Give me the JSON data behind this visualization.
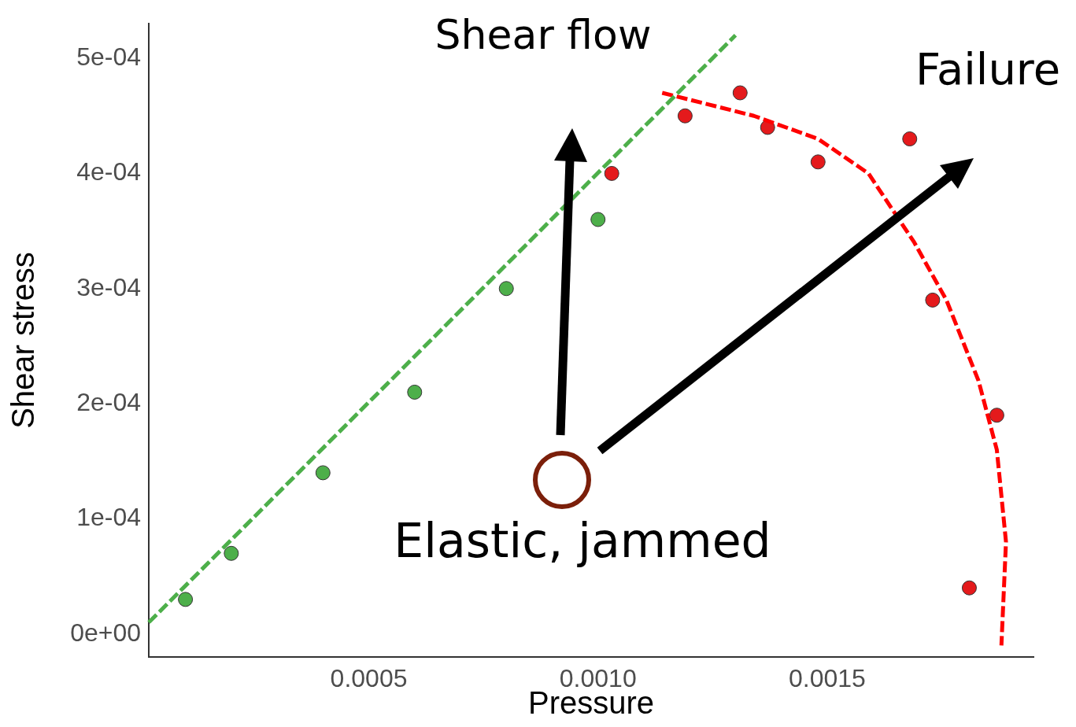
{
  "chart_data": {
    "type": "scatter",
    "xlabel": "Pressure",
    "ylabel": "Shear stress",
    "xlim": [
      2e-05,
      0.00195
    ],
    "ylim": [
      -2e-05,
      0.00053
    ],
    "xticks": [
      0.0005,
      {
        "value": 0.001,
        "label": "0.0010"
      },
      0.0015
    ],
    "yticks": [
      {
        "value": 0,
        "label": "0e+00"
      },
      {
        "value": 0.0001,
        "label": "1e-04"
      },
      {
        "value": 0.0002,
        "label": "2e-04"
      },
      {
        "value": 0.0003,
        "label": "3e-04"
      },
      {
        "value": 0.0004,
        "label": "4e-04"
      },
      {
        "value": 0.0005,
        "label": "5e-04"
      }
    ],
    "grid": false,
    "legend": false,
    "annotations": [
      "Shear flow",
      "Failure",
      "Elastic, jammed"
    ],
    "series": [
      {
        "type": "line",
        "color": "#4daf4a",
        "line_style": "dashed",
        "marker": "none",
        "x": [
          2e-05,
          0.0013
        ],
        "values": [
          1e-05,
          0.00052
        ]
      },
      {
        "type": "line",
        "color": "#ff0000",
        "line_style": "dashed",
        "marker": "none",
        "x": [
          0.00114,
          0.00124,
          0.00134,
          0.00148,
          0.00159,
          0.00169,
          0.00176,
          0.00183,
          0.00187,
          0.00189,
          0.00188
        ],
        "values": [
          0.00047,
          0.00046,
          0.00045,
          0.00043,
          0.0004,
          0.00034,
          0.00029,
          0.00022,
          0.00016,
          8e-05,
          -1e-05
        ]
      },
      {
        "type": "scatter",
        "color": "#4daf4a",
        "marker": "circle",
        "x": [
          0.0001,
          0.0002,
          0.0004,
          0.0006,
          0.0008,
          0.001
        ],
        "values": [
          3e-05,
          7e-05,
          0.00014,
          0.00021,
          0.0003,
          0.00036
        ]
      },
      {
        "type": "scatter",
        "color": "#e41a1c",
        "marker": "circle",
        "x": [
          0.00103,
          0.00119,
          0.00131,
          0.00137,
          0.00148,
          0.00168,
          0.00173,
          0.00187,
          0.00181
        ],
        "values": [
          0.0004,
          0.00045,
          0.00047,
          0.00044,
          0.00041,
          0.00043,
          0.00029,
          0.00019,
          4e-05
        ]
      }
    ]
  }
}
